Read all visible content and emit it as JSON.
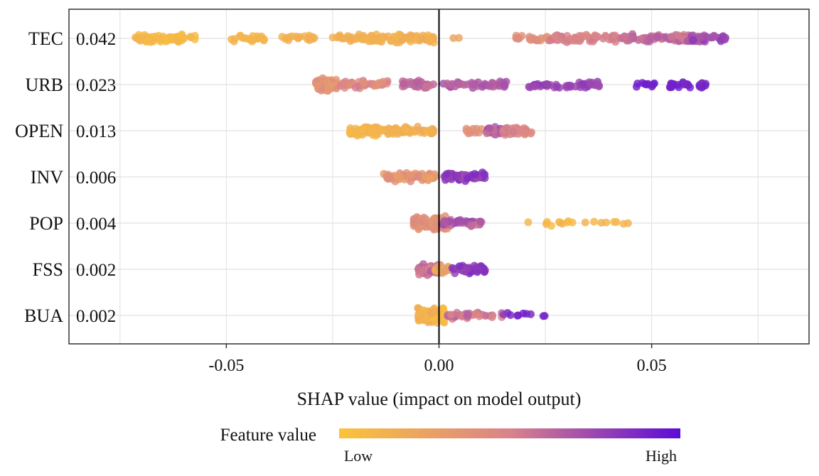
{
  "chart_data": {
    "type": "scatter",
    "subtype": "shap-beeswarm",
    "title": "",
    "xlabel": "SHAP value (impact on model output)",
    "ylabel": "",
    "xlim": [
      -0.087,
      0.087
    ],
    "xticks": [
      -0.05,
      0.0,
      0.05
    ],
    "xtick_labels": [
      "-0.05",
      "0.00",
      "0.05"
    ],
    "grid": true,
    "zero_line": true,
    "features": [
      {
        "name": "TEC",
        "importance": "0.042",
        "clusters": [
          {
            "from": -0.072,
            "to": -0.057,
            "v0": 0.05,
            "v1": 0.12,
            "n": 70
          },
          {
            "from": -0.049,
            "to": -0.041,
            "v0": 0.1,
            "v1": 0.14,
            "n": 22
          },
          {
            "from": -0.037,
            "to": -0.029,
            "v0": 0.12,
            "v1": 0.16,
            "n": 18
          },
          {
            "from": -0.025,
            "to": -0.019,
            "v0": 0.14,
            "v1": 0.18,
            "n": 16
          },
          {
            "from": -0.019,
            "to": -0.001,
            "v0": 0.12,
            "v1": 0.2,
            "n": 85
          },
          {
            "from": 0.003,
            "to": 0.005,
            "v0": 0.22,
            "v1": 0.24,
            "n": 2
          },
          {
            "from": 0.018,
            "to": 0.026,
            "v0": 0.35,
            "v1": 0.45,
            "n": 20
          },
          {
            "from": 0.026,
            "to": 0.042,
            "v0": 0.45,
            "v1": 0.55,
            "n": 55
          },
          {
            "from": 0.042,
            "to": 0.062,
            "v0": 0.52,
            "v1": 0.68,
            "n": 90
          },
          {
            "from": 0.058,
            "to": 0.068,
            "v0": 0.68,
            "v1": 0.8,
            "n": 30
          }
        ]
      },
      {
        "name": "URB",
        "importance": "0.023",
        "clusters": [
          {
            "from": -0.029,
            "to": -0.024,
            "v0": 0.25,
            "v1": 0.45,
            "n": 60
          },
          {
            "from": -0.024,
            "to": -0.012,
            "v0": 0.38,
            "v1": 0.55,
            "n": 40
          },
          {
            "from": -0.009,
            "to": -0.001,
            "v0": 0.55,
            "v1": 0.65,
            "n": 30
          },
          {
            "from": 0.001,
            "to": 0.016,
            "v0": 0.62,
            "v1": 0.72,
            "n": 40
          },
          {
            "from": 0.021,
            "to": 0.038,
            "v0": 0.72,
            "v1": 0.82,
            "n": 45
          },
          {
            "from": 0.046,
            "to": 0.051,
            "v0": 0.9,
            "v1": 0.98,
            "n": 10
          },
          {
            "from": 0.054,
            "to": 0.063,
            "v0": 0.85,
            "v1": 0.94,
            "n": 25
          }
        ]
      },
      {
        "name": "OPEN",
        "importance": "0.013",
        "clusters": [
          {
            "from": -0.021,
            "to": -0.014,
            "v0": 0.08,
            "v1": 0.15,
            "n": 50
          },
          {
            "from": -0.014,
            "to": -0.001,
            "v0": 0.1,
            "v1": 0.22,
            "n": 60
          },
          {
            "from": 0.006,
            "to": 0.011,
            "v0": 0.35,
            "v1": 0.45,
            "n": 10
          },
          {
            "from": 0.011,
            "to": 0.015,
            "v0": 0.55,
            "v1": 0.8,
            "n": 20
          },
          {
            "from": 0.015,
            "to": 0.022,
            "v0": 0.4,
            "v1": 0.55,
            "n": 35
          }
        ]
      },
      {
        "name": "INV",
        "importance": "0.006",
        "clusters": [
          {
            "from": -0.013,
            "to": -0.001,
            "v0": 0.25,
            "v1": 0.45,
            "n": 70
          },
          {
            "from": 0.001,
            "to": 0.011,
            "v0": 0.72,
            "v1": 0.88,
            "n": 60
          }
        ]
      },
      {
        "name": "POP",
        "importance": "0.004",
        "clusters": [
          {
            "from": -0.006,
            "to": 0.002,
            "v0": 0.3,
            "v1": 0.5,
            "n": 95
          },
          {
            "from": 0.001,
            "to": 0.01,
            "v0": 0.55,
            "v1": 0.82,
            "n": 40
          },
          {
            "from": 0.02,
            "to": 0.046,
            "v0": 0.05,
            "v1": 0.15,
            "n": 18
          }
        ]
      },
      {
        "name": "FSS",
        "importance": "0.002",
        "clusters": [
          {
            "from": -0.005,
            "to": 0.001,
            "v0": 0.45,
            "v1": 0.7,
            "n": 60
          },
          {
            "from": -0.001,
            "to": 0.003,
            "v0": 0.15,
            "v1": 0.3,
            "n": 20
          },
          {
            "from": 0.003,
            "to": 0.011,
            "v0": 0.75,
            "v1": 0.9,
            "n": 45
          }
        ]
      },
      {
        "name": "BUA",
        "importance": "0.002",
        "clusters": [
          {
            "from": -0.005,
            "to": 0.002,
            "v0": 0.05,
            "v1": 0.2,
            "n": 110
          },
          {
            "from": 0.002,
            "to": 0.015,
            "v0": 0.45,
            "v1": 0.65,
            "n": 35
          },
          {
            "from": 0.015,
            "to": 0.025,
            "v0": 0.8,
            "v1": 0.95,
            "n": 10
          }
        ]
      }
    ],
    "legend": {
      "title": "Feature value",
      "low_label": "Low",
      "high_label": "High",
      "placement": "bottom"
    },
    "colors": {
      "low": "#FBC33A",
      "mid": "#D9838A",
      "high": "#5C0BD6",
      "grid": "#E5E5E5",
      "zero_line": "#000000",
      "frame": "#333333"
    }
  }
}
